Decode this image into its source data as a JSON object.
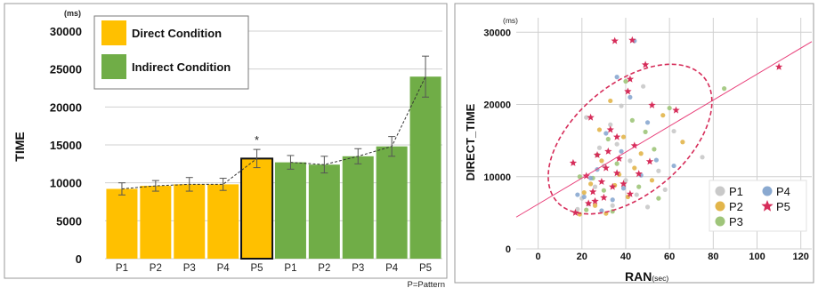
{
  "footnote": "P=Pattern",
  "colors": {
    "direct": "#ffc000",
    "indirect": "#70ad47",
    "grid": "#d0d0d0",
    "trend": "#333333",
    "ellipse": "#d62d5a",
    "regression": "#e8407a",
    "scatter_p1": "#c9c9c9",
    "scatter_p2": "#e2b54a",
    "scatter_p3": "#9fc57a",
    "scatter_p4": "#8aa9d0",
    "scatter_p5": "#d62d5a"
  },
  "chart_data": [
    {
      "type": "bar",
      "title": "",
      "ylabel": "TIME",
      "yunit": "(ms)",
      "xlabel": "",
      "ylim": [
        0,
        30000
      ],
      "yticks": [
        0,
        5000,
        10000,
        15000,
        20000,
        25000,
        30000
      ],
      "grid": true,
      "categories": [
        "P1",
        "P2",
        "P3",
        "P4",
        "P5",
        "P1",
        "P2",
        "P3",
        "P4",
        "P5"
      ],
      "values": [
        9200,
        9600,
        9800,
        9800,
        13200,
        12700,
        12400,
        13500,
        14800,
        24000
      ],
      "errors": [
        800,
        700,
        900,
        800,
        1200,
        900,
        1100,
        1000,
        1300,
        2700
      ],
      "groups": [
        "direct",
        "direct",
        "direct",
        "direct",
        "direct",
        "indirect",
        "indirect",
        "indirect",
        "indirect",
        "indirect"
      ],
      "highlight_index": 4,
      "significance": [
        {
          "index": 4,
          "label": "*"
        }
      ],
      "legend": {
        "placement": "top-left",
        "entries": [
          {
            "key": "direct",
            "label": "Direct Condition"
          },
          {
            "key": "indirect",
            "label": "Indirect Condition"
          }
        ]
      }
    },
    {
      "type": "scatter",
      "title": "",
      "xlabel": "RAN",
      "xunit": "(sec)",
      "ylabel": "DIRECT_TIME",
      "yunit": "(ms)",
      "xlim": [
        -10,
        125
      ],
      "ylim": [
        0,
        32000
      ],
      "xticks": [
        0,
        20,
        40,
        60,
        80,
        100,
        120
      ],
      "yticks": [
        0,
        10000,
        20000,
        30000
      ],
      "grid": true,
      "regression": {
        "slope": 180,
        "intercept": 6200
      },
      "ellipse": {
        "cx": 42,
        "cy": 15200,
        "rx": 44,
        "ry": 4600,
        "angle_deg": -40
      },
      "legend": {
        "placement": "bottom-right",
        "entries": [
          "P1",
          "P2",
          "P3",
          "P4",
          "P5"
        ]
      },
      "series": [
        {
          "name": "P1",
          "marker": "circle",
          "points": [
            [
              22,
              18200
            ],
            [
              33,
              17200
            ],
            [
              48,
              22500
            ],
            [
              30,
              11500
            ],
            [
              40,
              9500
            ],
            [
              26,
              8600
            ],
            [
              23,
              6200
            ],
            [
              45,
              7500
            ],
            [
              55,
              10800
            ],
            [
              20,
              7000
            ],
            [
              36,
              14500
            ],
            [
              62,
              16300
            ],
            [
              75,
              12700
            ],
            [
              58,
              8200
            ],
            [
              18,
              5500
            ],
            [
              28,
              14000
            ],
            [
              42,
              12200
            ],
            [
              50,
              5800
            ],
            [
              34,
              6000
            ],
            [
              38,
              19800
            ]
          ]
        },
        {
          "name": "P2",
          "marker": "circle",
          "points": [
            [
              21,
              7800
            ],
            [
              29,
              12200
            ],
            [
              35,
              8800
            ],
            [
              44,
              11200
            ],
            [
              26,
              6000
            ],
            [
              52,
              9500
            ],
            [
              31,
              4900
            ],
            [
              39,
              15500
            ],
            [
              47,
              13200
            ],
            [
              24,
              9000
            ],
            [
              57,
              18500
            ],
            [
              33,
              20500
            ],
            [
              19,
              4800
            ],
            [
              41,
              7200
            ],
            [
              28,
              16500
            ],
            [
              66,
              14800
            ],
            [
              37,
              10300
            ]
          ]
        },
        {
          "name": "P3",
          "marker": "circle",
          "points": [
            [
              25,
              9800
            ],
            [
              32,
              15200
            ],
            [
              43,
              17800
            ],
            [
              53,
              13800
            ],
            [
              22,
              5400
            ],
            [
              36,
              11800
            ],
            [
              49,
              16200
            ],
            [
              30,
              8100
            ],
            [
              40,
              23200
            ],
            [
              60,
              19500
            ],
            [
              85,
              22200
            ],
            [
              27,
              13000
            ],
            [
              46,
              8600
            ],
            [
              34,
              5200
            ],
            [
              19,
              10000
            ],
            [
              55,
              7000
            ]
          ]
        },
        {
          "name": "P4",
          "marker": "circle",
          "points": [
            [
              21,
              7200
            ],
            [
              27,
              11000
            ],
            [
              31,
              16000
            ],
            [
              38,
              13500
            ],
            [
              42,
              21000
            ],
            [
              47,
              10200
            ],
            [
              34,
              6800
            ],
            [
              54,
              12300
            ],
            [
              24,
              9800
            ],
            [
              29,
              5300
            ],
            [
              44,
              28800
            ],
            [
              36,
              23800
            ],
            [
              50,
              17500
            ],
            [
              62,
              11500
            ],
            [
              39,
              8400
            ],
            [
              18,
              7500
            ]
          ]
        },
        {
          "name": "P5",
          "marker": "star",
          "points": [
            [
              35,
              28800
            ],
            [
              43,
              28900
            ],
            [
              42,
              23500
            ],
            [
              49,
              25500
            ],
            [
              41,
              21800
            ],
            [
              52,
              19900
            ],
            [
              63,
              19200
            ],
            [
              24,
              18200
            ],
            [
              33,
              16500
            ],
            [
              36,
              15500
            ],
            [
              44,
              14300
            ],
            [
              32,
              13500
            ],
            [
              27,
              13000
            ],
            [
              37,
              12500
            ],
            [
              51,
              12100
            ],
            [
              16,
              11900
            ],
            [
              31,
              11200
            ],
            [
              36,
              10500
            ],
            [
              46,
              10400
            ],
            [
              22,
              10100
            ],
            [
              29,
              9300
            ],
            [
              39,
              9000
            ],
            [
              34,
              8600
            ],
            [
              25,
              7900
            ],
            [
              42,
              7600
            ],
            [
              30,
              7100
            ],
            [
              26,
              6600
            ],
            [
              23,
              6300
            ],
            [
              17,
              5000
            ],
            [
              110,
              25200
            ]
          ]
        }
      ]
    }
  ]
}
